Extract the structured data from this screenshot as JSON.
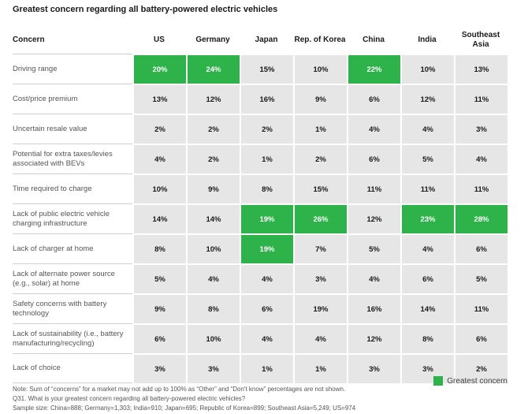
{
  "chart_data": {
    "type": "table",
    "title": "Greatest concern regarding all battery-powered electric vehicles",
    "header_label": "Concern",
    "markets": [
      "US",
      "Germany",
      "Japan",
      "Rep. of Korea",
      "China",
      "India",
      "Southeast Asia"
    ],
    "rows": [
      {
        "concern": "Driving range",
        "values": [
          "20%",
          "24%",
          "15%",
          "10%",
          "22%",
          "10%",
          "13%"
        ],
        "highlight": [
          true,
          true,
          false,
          false,
          true,
          false,
          false
        ]
      },
      {
        "concern": "Cost/price premium",
        "values": [
          "13%",
          "12%",
          "16%",
          "9%",
          "6%",
          "12%",
          "11%"
        ],
        "highlight": [
          false,
          false,
          false,
          false,
          false,
          false,
          false
        ]
      },
      {
        "concern": "Uncertain resale value",
        "values": [
          "2%",
          "2%",
          "2%",
          "1%",
          "4%",
          "4%",
          "3%"
        ],
        "highlight": [
          false,
          false,
          false,
          false,
          false,
          false,
          false
        ]
      },
      {
        "concern": "Potential for extra taxes/levies associated with BEVs",
        "values": [
          "4%",
          "2%",
          "1%",
          "2%",
          "6%",
          "5%",
          "4%"
        ],
        "highlight": [
          false,
          false,
          false,
          false,
          false,
          false,
          false
        ]
      },
      {
        "concern": "Time required to charge",
        "values": [
          "10%",
          "9%",
          "8%",
          "15%",
          "11%",
          "11%",
          "11%"
        ],
        "highlight": [
          false,
          false,
          false,
          false,
          false,
          false,
          false
        ]
      },
      {
        "concern": "Lack of public electric vehicle charging infrastructure",
        "values": [
          "14%",
          "14%",
          "19%",
          "26%",
          "12%",
          "23%",
          "28%"
        ],
        "highlight": [
          false,
          false,
          true,
          true,
          false,
          true,
          true
        ]
      },
      {
        "concern": "Lack of charger at home",
        "values": [
          "8%",
          "10%",
          "19%",
          "7%",
          "5%",
          "4%",
          "6%"
        ],
        "highlight": [
          false,
          false,
          true,
          false,
          false,
          false,
          false
        ]
      },
      {
        "concern": "Lack of alternate power source (e.g., solar) at home",
        "values": [
          "5%",
          "4%",
          "4%",
          "3%",
          "4%",
          "6%",
          "5%"
        ],
        "highlight": [
          false,
          false,
          false,
          false,
          false,
          false,
          false
        ]
      },
      {
        "concern": "Safety concerns with battery technology",
        "values": [
          "9%",
          "8%",
          "6%",
          "19%",
          "16%",
          "14%",
          "11%"
        ],
        "highlight": [
          false,
          false,
          false,
          false,
          false,
          false,
          false
        ]
      },
      {
        "concern": "Lack of sustainability (i.e., battery manufacturing/recycling)",
        "values": [
          "6%",
          "10%",
          "4%",
          "4%",
          "12%",
          "8%",
          "6%"
        ],
        "highlight": [
          false,
          false,
          false,
          false,
          false,
          false,
          false
        ]
      },
      {
        "concern": "Lack of choice",
        "values": [
          "3%",
          "3%",
          "1%",
          "1%",
          "3%",
          "3%",
          "2%"
        ],
        "highlight": [
          false,
          false,
          false,
          false,
          false,
          false,
          false
        ]
      }
    ],
    "legend": [
      {
        "label": "Greatest concern",
        "color": "#2eb34a"
      }
    ]
  },
  "notes": [
    "Note: Sum of “concerns” for a market may not add up to 100% as “Other” and “Don't know” percentages are not shown.",
    "Q31. What is your greatest concern regarding all battery-powered electric vehicles?",
    "Sample size: China=888; Germany=1,303; India=910; Japan=695; Republic of Korea=899; Southeast Asia=5,249; US=974"
  ],
  "colors": {
    "highlight": "#2eb34a",
    "cell": "#e6e6e6"
  }
}
